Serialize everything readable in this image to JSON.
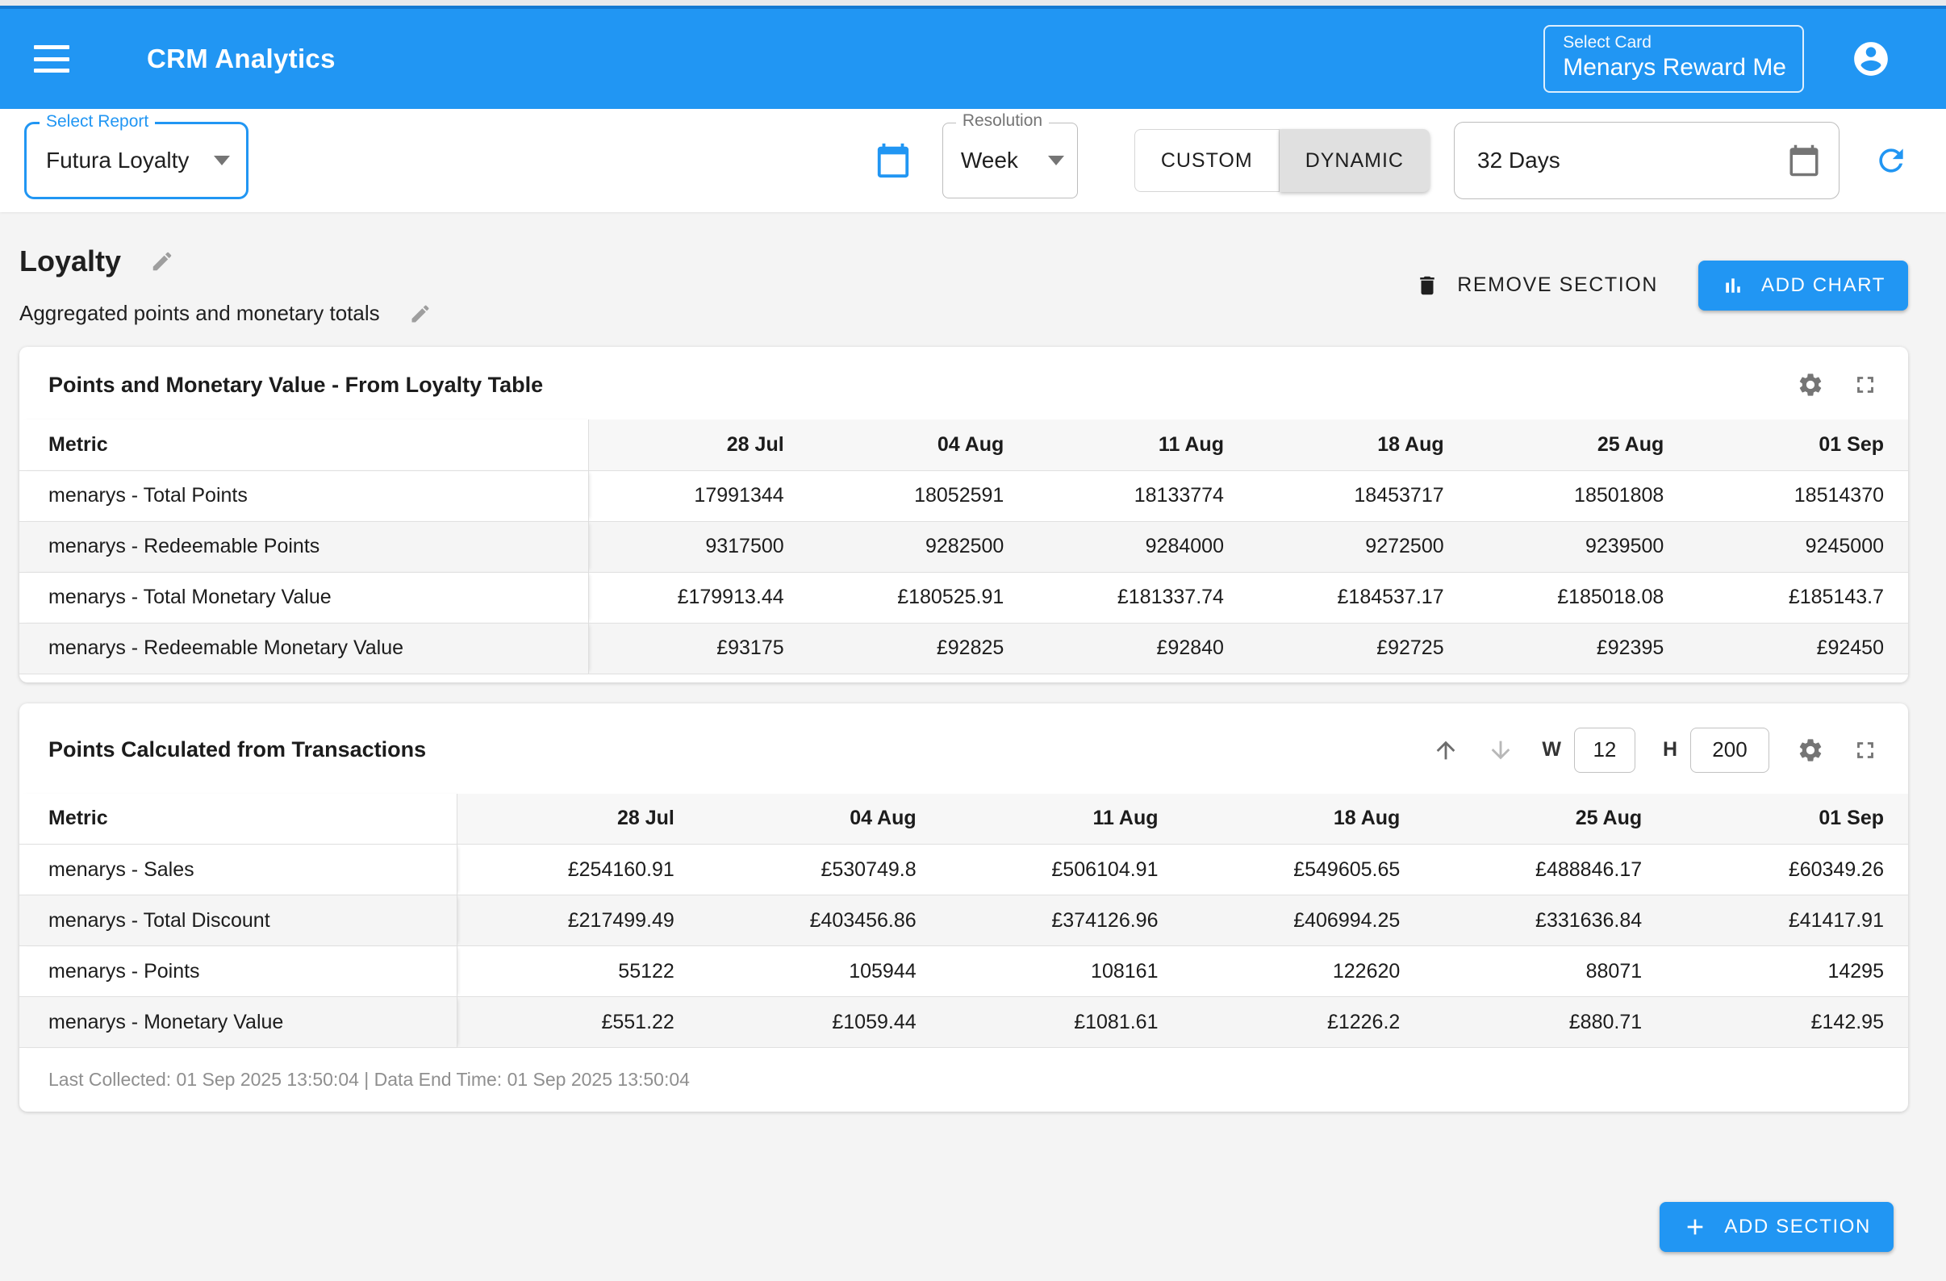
{
  "header": {
    "title": "CRM Analytics",
    "card_selector": {
      "label": "Select Card",
      "value": "Menarys Reward Me"
    }
  },
  "toolbar": {
    "report_select": {
      "label": "Select Report",
      "value": "Futura Loyalty"
    },
    "resolution_select": {
      "label": "Resolution",
      "value": "Week"
    },
    "range_toggle": {
      "custom": "CUSTOM",
      "dynamic": "DYNAMIC",
      "selected": "DYNAMIC"
    },
    "range_input": {
      "value": "32 Days"
    }
  },
  "section": {
    "title": "Loyalty",
    "subtitle": "Aggregated points and monetary totals",
    "remove_label": "REMOVE SECTION",
    "add_chart_label": "ADD CHART"
  },
  "tables": [
    {
      "title": "Points and Monetary Value - From Loyalty Table",
      "metric_header": "Metric",
      "columns": [
        "28 Jul",
        "04 Aug",
        "11 Aug",
        "18 Aug",
        "25 Aug",
        "01 Sep"
      ],
      "rows": [
        {
          "metric": "menarys - Total Points",
          "values": [
            "17991344",
            "18052591",
            "18133774",
            "18453717",
            "18501808",
            "18514370"
          ]
        },
        {
          "metric": "menarys - Redeemable Points",
          "values": [
            "9317500",
            "9282500",
            "9284000",
            "9272500",
            "9239500",
            "9245000"
          ]
        },
        {
          "metric": "menarys - Total Monetary Value",
          "values": [
            "£179913.44",
            "£180525.91",
            "£181337.74",
            "£184537.17",
            "£185018.08",
            "£185143.7"
          ]
        },
        {
          "metric": "menarys - Redeemable Monetary Value",
          "values": [
            "£93175",
            "£92825",
            "£92840",
            "£92725",
            "£92395",
            "£92450"
          ]
        }
      ]
    },
    {
      "title": "Points Calculated from Transactions",
      "metric_header": "Metric",
      "columns": [
        "28 Jul",
        "04 Aug",
        "11 Aug",
        "18 Aug",
        "25 Aug",
        "01 Sep"
      ],
      "controls": {
        "w_label": "W",
        "w_value": "12",
        "h_label": "H",
        "h_value": "200"
      },
      "rows": [
        {
          "metric": "menarys - Sales",
          "values": [
            "£254160.91",
            "£530749.8",
            "£506104.91",
            "£549605.65",
            "£488846.17",
            "£60349.26"
          ]
        },
        {
          "metric": "menarys - Total Discount",
          "values": [
            "£217499.49",
            "£403456.86",
            "£374126.96",
            "£406994.25",
            "£331636.84",
            "£41417.91"
          ]
        },
        {
          "metric": "menarys - Points",
          "values": [
            "55122",
            "105944",
            "108161",
            "122620",
            "88071",
            "14295"
          ]
        },
        {
          "metric": "menarys - Monetary Value",
          "values": [
            "£551.22",
            "£1059.44",
            "£1081.61",
            "£1226.2",
            "£880.71",
            "£142.95"
          ]
        }
      ],
      "footer": "Last Collected: 01 Sep 2025 13:50:04 | Data End Time: 01 Sep 2025 13:50:04"
    }
  ],
  "bottom": {
    "add_section_label": "ADD SECTION"
  },
  "icons": [
    "menu-icon",
    "account-icon",
    "calendar-icon",
    "dropdown-arrow-icon",
    "refresh-icon",
    "edit-pencil-icon",
    "trash-icon",
    "bar-chart-icon",
    "gear-icon",
    "fullscreen-icon",
    "arrow-up-icon",
    "arrow-down-icon",
    "plus-icon"
  ],
  "colors": {
    "accent": "#2196f3",
    "header_bg": "#2196f3",
    "page_bg": "#f4f4f4",
    "toggle_selected_bg": "#e0e0e0",
    "table_header_bg": "#f7f7f7",
    "row_alt_bg": "#f5f5f5",
    "muted_text": "#8f8f8f"
  }
}
